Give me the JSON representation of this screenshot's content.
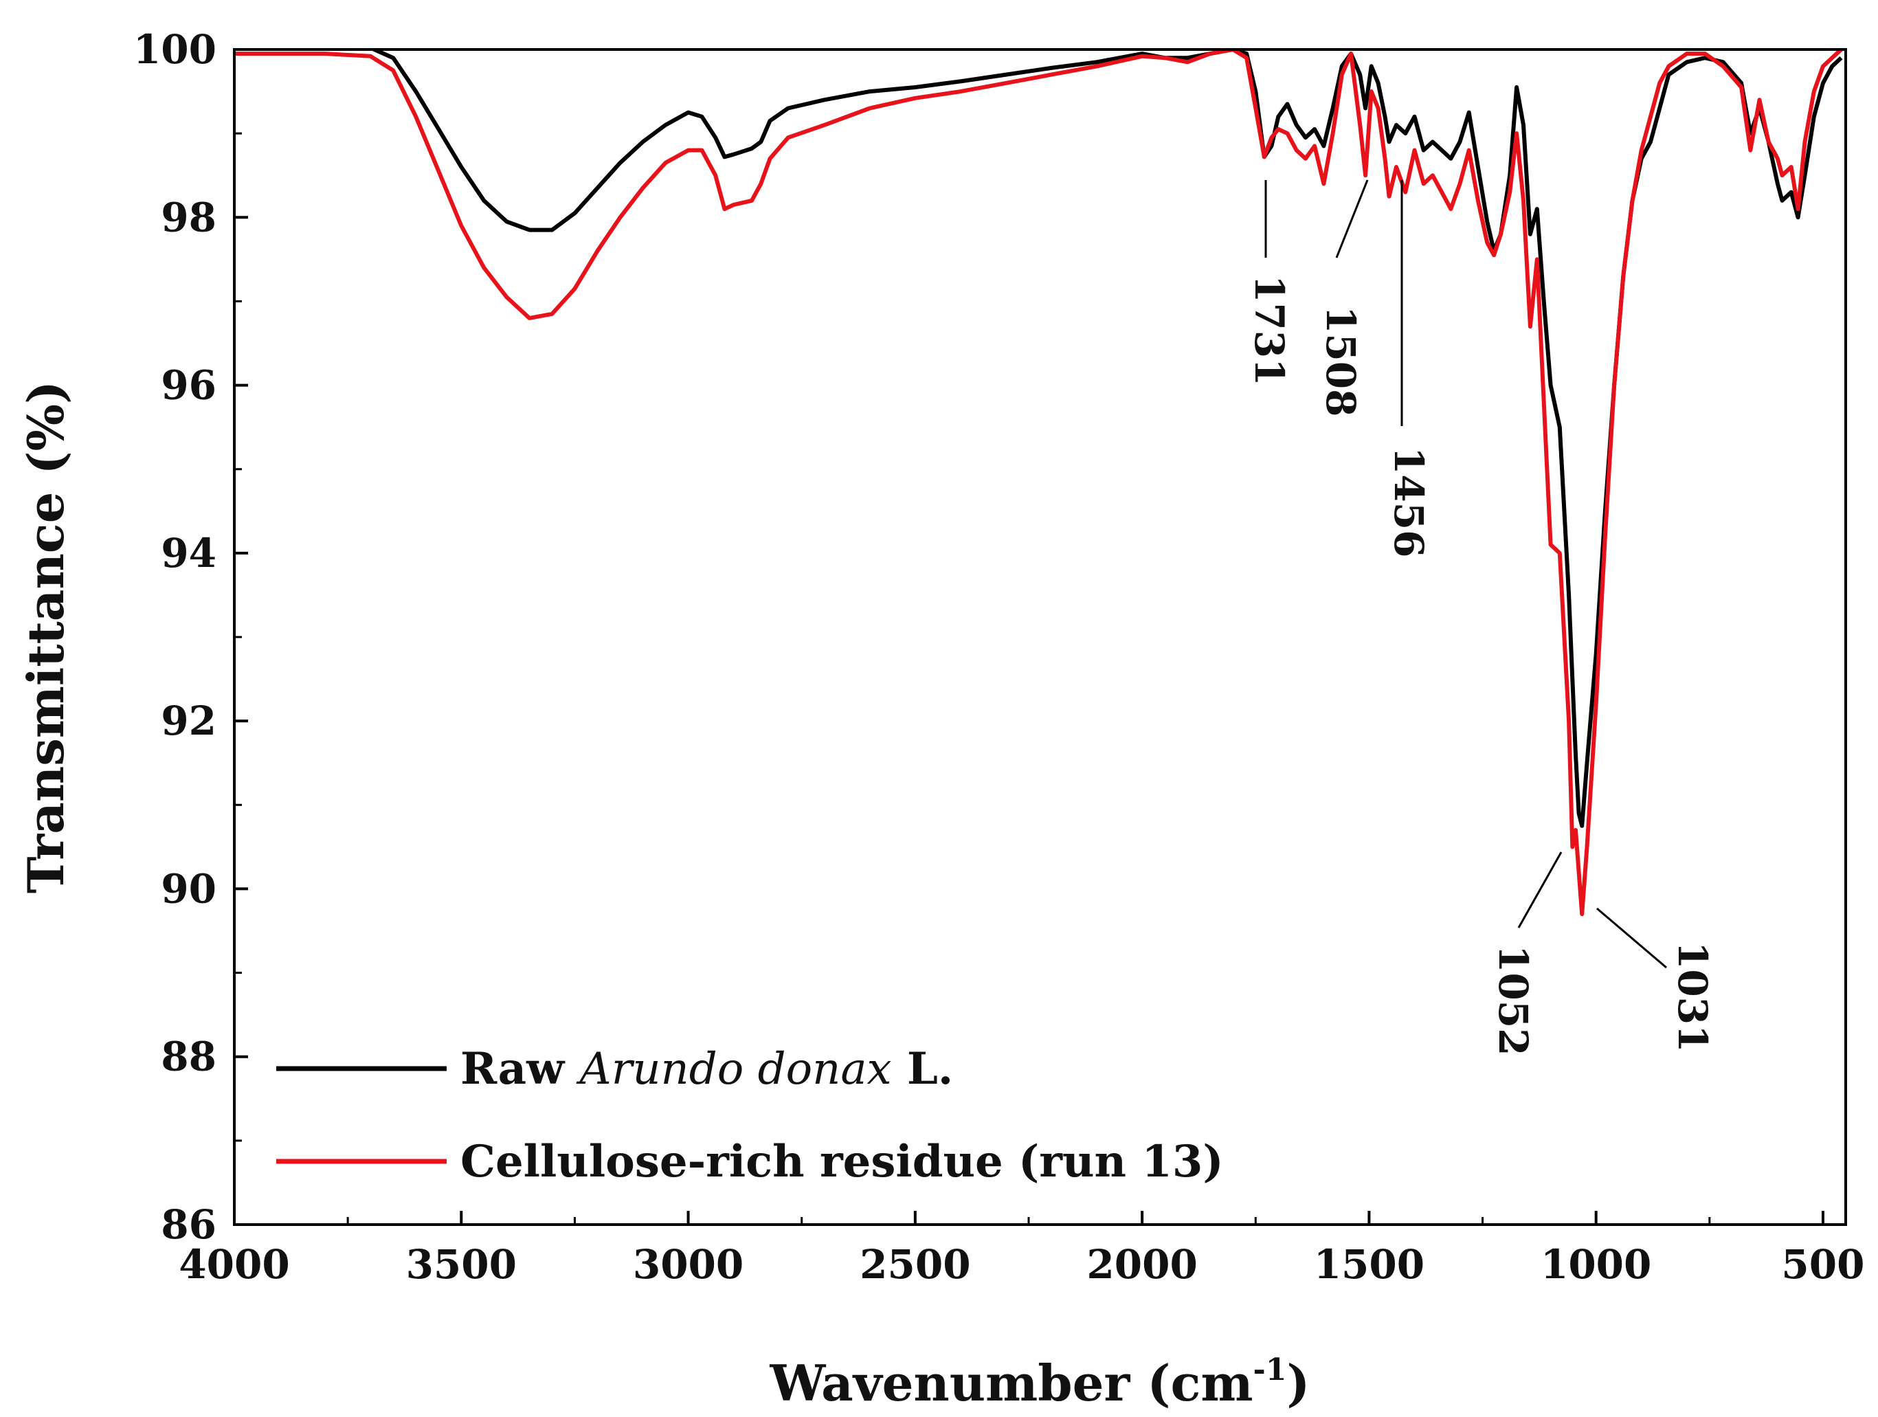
{
  "chart_data": {
    "type": "line",
    "title": "",
    "xlabel": "Wavenumber (cm",
    "xlabel_superscript": "-1",
    "xlabel_close": ")",
    "ylabel": "Transmittance (%)",
    "xlim": [
      4000,
      450
    ],
    "ylim": [
      86,
      100
    ],
    "x_reversed": true,
    "grid": false,
    "x_ticks": [
      {
        "value": 4000,
        "label": "4000"
      },
      {
        "value": 3500,
        "label": "3500"
      },
      {
        "value": 3000,
        "label": "3000"
      },
      {
        "value": 2500,
        "label": "2500"
      },
      {
        "value": 2000,
        "label": "2000"
      },
      {
        "value": 1500,
        "label": "1500"
      },
      {
        "value": 1000,
        "label": "1000"
      },
      {
        "value": 500,
        "label": "500"
      }
    ],
    "y_ticks": [
      {
        "value": 100,
        "label": "100"
      },
      {
        "value": 98,
        "label": "98"
      },
      {
        "value": 96,
        "label": "96"
      },
      {
        "value": 94,
        "label": "94"
      },
      {
        "value": 92,
        "label": "92"
      },
      {
        "value": 90,
        "label": "90"
      },
      {
        "value": 88,
        "label": "88"
      },
      {
        "value": 86,
        "label": "86"
      }
    ],
    "legend": {
      "placement": "bottom-left",
      "entries": [
        {
          "series": 0,
          "text_before": "Raw ",
          "text_italic": "Arundo donax",
          "text_after": " L."
        },
        {
          "series": 1,
          "text_before": "Cellulose-rich residue (run 13)",
          "text_italic": "",
          "text_after": ""
        }
      ]
    },
    "series": [
      {
        "name": "Raw Arundo donax L.",
        "color": "#000000",
        "points": [
          [
            4000,
            100.05
          ],
          [
            3900,
            100.03
          ],
          [
            3800,
            100.02
          ],
          [
            3700,
            100.02
          ],
          [
            3650,
            99.9
          ],
          [
            3600,
            99.5
          ],
          [
            3550,
            99.05
          ],
          [
            3500,
            98.6
          ],
          [
            3450,
            98.2
          ],
          [
            3400,
            97.95
          ],
          [
            3350,
            97.85
          ],
          [
            3300,
            97.85
          ],
          [
            3250,
            98.05
          ],
          [
            3200,
            98.35
          ],
          [
            3150,
            98.65
          ],
          [
            3100,
            98.9
          ],
          [
            3050,
            99.1
          ],
          [
            3000,
            99.25
          ],
          [
            2970,
            99.2
          ],
          [
            2940,
            98.95
          ],
          [
            2920,
            98.72
          ],
          [
            2900,
            98.75
          ],
          [
            2860,
            98.82
          ],
          [
            2840,
            98.9
          ],
          [
            2820,
            99.15
          ],
          [
            2780,
            99.3
          ],
          [
            2700,
            99.4
          ],
          [
            2600,
            99.5
          ],
          [
            2500,
            99.55
          ],
          [
            2400,
            99.62
          ],
          [
            2300,
            99.7
          ],
          [
            2200,
            99.78
          ],
          [
            2100,
            99.85
          ],
          [
            2000,
            99.95
          ],
          [
            1950,
            99.9
          ],
          [
            1900,
            99.9
          ],
          [
            1850,
            99.95
          ],
          [
            1800,
            100.0
          ],
          [
            1770,
            99.95
          ],
          [
            1750,
            99.5
          ],
          [
            1731,
            98.72
          ],
          [
            1715,
            98.85
          ],
          [
            1700,
            99.2
          ],
          [
            1680,
            99.35
          ],
          [
            1660,
            99.1
          ],
          [
            1640,
            98.95
          ],
          [
            1620,
            99.05
          ],
          [
            1600,
            98.85
          ],
          [
            1580,
            99.3
          ],
          [
            1560,
            99.8
          ],
          [
            1540,
            99.95
          ],
          [
            1520,
            99.7
          ],
          [
            1508,
            99.3
          ],
          [
            1495,
            99.8
          ],
          [
            1480,
            99.6
          ],
          [
            1465,
            99.2
          ],
          [
            1456,
            98.9
          ],
          [
            1440,
            99.1
          ],
          [
            1420,
            99.0
          ],
          [
            1400,
            99.2
          ],
          [
            1380,
            98.8
          ],
          [
            1360,
            98.9
          ],
          [
            1340,
            98.8
          ],
          [
            1320,
            98.7
          ],
          [
            1300,
            98.9
          ],
          [
            1280,
            99.25
          ],
          [
            1260,
            98.6
          ],
          [
            1240,
            97.95
          ],
          [
            1225,
            97.6
          ],
          [
            1210,
            97.8
          ],
          [
            1190,
            98.5
          ],
          [
            1175,
            99.55
          ],
          [
            1160,
            99.1
          ],
          [
            1145,
            97.8
          ],
          [
            1130,
            98.1
          ],
          [
            1115,
            97.0
          ],
          [
            1100,
            96.0
          ],
          [
            1080,
            95.5
          ],
          [
            1060,
            93.5
          ],
          [
            1052,
            92.5
          ],
          [
            1045,
            91.6
          ],
          [
            1038,
            90.9
          ],
          [
            1031,
            90.75
          ],
          [
            1020,
            91.5
          ],
          [
            1000,
            92.8
          ],
          [
            980,
            94.5
          ],
          [
            960,
            96.0
          ],
          [
            940,
            97.3
          ],
          [
            920,
            98.2
          ],
          [
            900,
            98.7
          ],
          [
            880,
            98.9
          ],
          [
            860,
            99.3
          ],
          [
            840,
            99.7
          ],
          [
            800,
            99.85
          ],
          [
            760,
            99.9
          ],
          [
            720,
            99.85
          ],
          [
            680,
            99.6
          ],
          [
            660,
            99.0
          ],
          [
            640,
            99.3
          ],
          [
            620,
            98.9
          ],
          [
            600,
            98.4
          ],
          [
            590,
            98.2
          ],
          [
            570,
            98.3
          ],
          [
            555,
            98.0
          ],
          [
            540,
            98.5
          ],
          [
            520,
            99.2
          ],
          [
            500,
            99.6
          ],
          [
            480,
            99.8
          ],
          [
            460,
            99.9
          ]
        ]
      },
      {
        "name": "Cellulose-rich residue (run 13)",
        "color": "#e8131a",
        "points": [
          [
            4000,
            99.95
          ],
          [
            3900,
            99.95
          ],
          [
            3800,
            99.95
          ],
          [
            3700,
            99.92
          ],
          [
            3650,
            99.75
          ],
          [
            3600,
            99.2
          ],
          [
            3550,
            98.55
          ],
          [
            3500,
            97.9
          ],
          [
            3450,
            97.4
          ],
          [
            3400,
            97.05
          ],
          [
            3350,
            96.8
          ],
          [
            3300,
            96.85
          ],
          [
            3250,
            97.15
          ],
          [
            3200,
            97.6
          ],
          [
            3150,
            98.0
          ],
          [
            3100,
            98.35
          ],
          [
            3050,
            98.65
          ],
          [
            3000,
            98.8
          ],
          [
            2970,
            98.8
          ],
          [
            2940,
            98.5
          ],
          [
            2920,
            98.1
          ],
          [
            2900,
            98.15
          ],
          [
            2860,
            98.2
          ],
          [
            2840,
            98.4
          ],
          [
            2820,
            98.7
          ],
          [
            2780,
            98.95
          ],
          [
            2700,
            99.1
          ],
          [
            2600,
            99.3
          ],
          [
            2500,
            99.42
          ],
          [
            2400,
            99.5
          ],
          [
            2300,
            99.6
          ],
          [
            2200,
            99.7
          ],
          [
            2100,
            99.8
          ],
          [
            2000,
            99.92
          ],
          [
            1950,
            99.9
          ],
          [
            1900,
            99.85
          ],
          [
            1850,
            99.95
          ],
          [
            1800,
            100.0
          ],
          [
            1770,
            99.9
          ],
          [
            1750,
            99.3
          ],
          [
            1731,
            98.72
          ],
          [
            1715,
            98.95
          ],
          [
            1700,
            99.05
          ],
          [
            1680,
            99.0
          ],
          [
            1660,
            98.8
          ],
          [
            1640,
            98.7
          ],
          [
            1620,
            98.85
          ],
          [
            1600,
            98.4
          ],
          [
            1580,
            99.0
          ],
          [
            1560,
            99.7
          ],
          [
            1540,
            99.95
          ],
          [
            1520,
            99.1
          ],
          [
            1508,
            98.5
          ],
          [
            1495,
            99.5
          ],
          [
            1480,
            99.3
          ],
          [
            1465,
            98.7
          ],
          [
            1456,
            98.25
          ],
          [
            1440,
            98.6
          ],
          [
            1420,
            98.3
          ],
          [
            1400,
            98.8
          ],
          [
            1380,
            98.4
          ],
          [
            1360,
            98.5
          ],
          [
            1340,
            98.3
          ],
          [
            1320,
            98.1
          ],
          [
            1300,
            98.4
          ],
          [
            1280,
            98.8
          ],
          [
            1260,
            98.2
          ],
          [
            1240,
            97.7
          ],
          [
            1225,
            97.55
          ],
          [
            1210,
            97.8
          ],
          [
            1190,
            98.3
          ],
          [
            1175,
            99.0
          ],
          [
            1160,
            98.2
          ],
          [
            1145,
            96.7
          ],
          [
            1130,
            97.5
          ],
          [
            1115,
            95.8
          ],
          [
            1100,
            94.1
          ],
          [
            1080,
            94.0
          ],
          [
            1060,
            92.0
          ],
          [
            1052,
            90.5
          ],
          [
            1045,
            90.7
          ],
          [
            1038,
            90.2
          ],
          [
            1031,
            89.7
          ],
          [
            1020,
            90.5
          ],
          [
            1000,
            92.2
          ],
          [
            980,
            94.2
          ],
          [
            960,
            96.0
          ],
          [
            940,
            97.3
          ],
          [
            920,
            98.2
          ],
          [
            900,
            98.8
          ],
          [
            880,
            99.2
          ],
          [
            860,
            99.6
          ],
          [
            840,
            99.8
          ],
          [
            800,
            99.95
          ],
          [
            760,
            99.95
          ],
          [
            720,
            99.8
          ],
          [
            680,
            99.55
          ],
          [
            660,
            98.8
          ],
          [
            640,
            99.4
          ],
          [
            620,
            98.9
          ],
          [
            600,
            98.7
          ],
          [
            590,
            98.5
          ],
          [
            570,
            98.6
          ],
          [
            555,
            98.1
          ],
          [
            540,
            98.9
          ],
          [
            520,
            99.5
          ],
          [
            500,
            99.8
          ],
          [
            480,
            99.9
          ],
          [
            460,
            100.0
          ]
        ]
      }
    ],
    "annotations": [
      {
        "label": "1731",
        "x": 1731,
        "y": 98.72
      },
      {
        "label": "1508",
        "x": 1508,
        "y": 98.5
      },
      {
        "label": "1456",
        "x": 1456,
        "y": 98.25
      },
      {
        "label": "1052",
        "x": 1052,
        "y": 90.5
      },
      {
        "label": "1031",
        "x": 1031,
        "y": 89.7
      }
    ]
  }
}
